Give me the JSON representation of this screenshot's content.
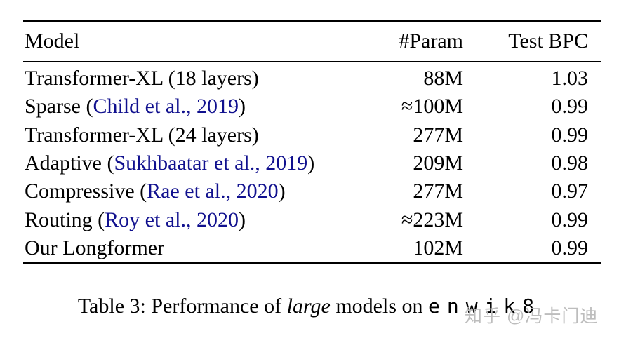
{
  "page": {
    "background": "#ffffff",
    "watermark": {
      "text": "知乎 @冯卡门迪",
      "color": "#bdbdbd"
    }
  },
  "table": {
    "link_color": "#10108e",
    "columns": [
      "Model",
      "#Param",
      "Test BPC"
    ],
    "rows": [
      {
        "model_prefix": "Transformer-XL (18 layers)",
        "model_link": "",
        "model_suffix": "",
        "param": "88M",
        "bpc": "1.03"
      },
      {
        "model_prefix": "Sparse (",
        "model_link": "Child et al., 2019",
        "model_suffix": ")",
        "param": "≈100M",
        "bpc": "0.99"
      },
      {
        "model_prefix": "Transformer-XL (24 layers)",
        "model_link": "",
        "model_suffix": "",
        "param": "277M",
        "bpc": "0.99"
      },
      {
        "model_prefix": "Adaptive (",
        "model_link": "Sukhbaatar et al., 2019",
        "model_suffix": ")",
        "param": "209M",
        "bpc": "0.98"
      },
      {
        "model_prefix": "Compressive (",
        "model_link": "Rae et al., 2020",
        "model_suffix": ")",
        "param": "277M",
        "bpc": "0.97"
      },
      {
        "model_prefix": "Routing (",
        "model_link": "Roy et al., 2020",
        "model_suffix": ")",
        "param": "≈223M",
        "bpc": "0.99"
      },
      {
        "model_prefix": "Our Longformer",
        "model_link": "",
        "model_suffix": "",
        "param": "102M",
        "bpc": "0.99"
      }
    ]
  },
  "caption": {
    "prefix": "Table 3: Performance of ",
    "emph": "large",
    "middle": " models on ",
    "code": "enwik8"
  }
}
